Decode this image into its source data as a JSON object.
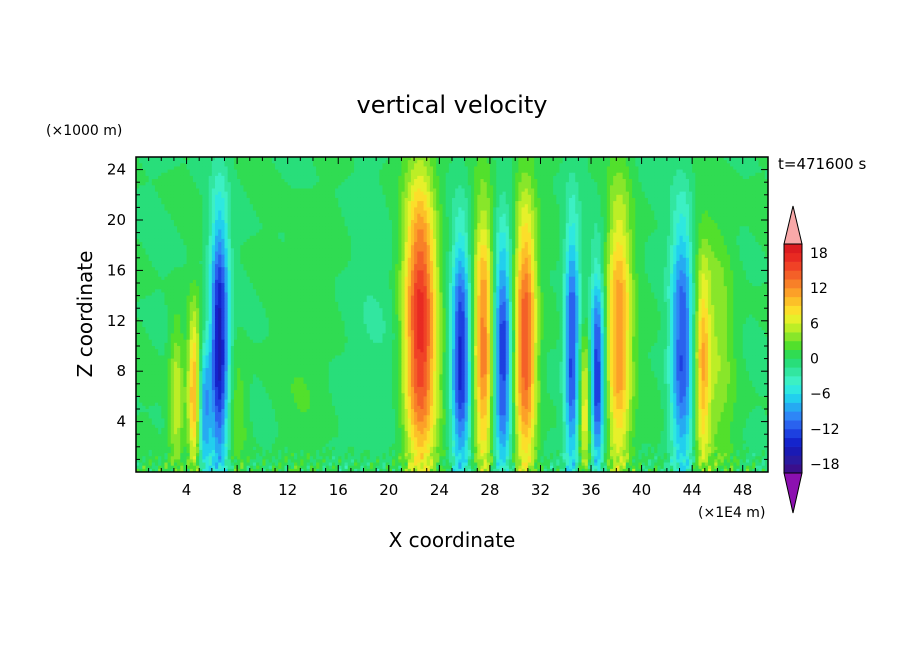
{
  "chart_data": {
    "type": "heatmap",
    "title": "vertical velocity",
    "xlabel": "X coordinate",
    "ylabel": "Z coordinate",
    "x_unit": "(×1E4 m)",
    "y_unit": "(×1000 m)",
    "time_label": "t=471600 s",
    "xlim": [
      0,
      50
    ],
    "ylim": [
      0,
      25
    ],
    "x_ticks": [
      4,
      8,
      12,
      16,
      20,
      24,
      28,
      32,
      36,
      40,
      44,
      48
    ],
    "y_ticks": [
      4,
      8,
      12,
      16,
      20,
      24
    ],
    "colorbar": {
      "levels": [
        -21,
        -19.5,
        -18,
        -16.5,
        -15,
        -13.5,
        -12,
        -10.5,
        -9,
        -7.5,
        -6,
        -4.5,
        -3,
        -1.5,
        0,
        1.5,
        3,
        4.5,
        6,
        7.5,
        9,
        10.5,
        12,
        13.5,
        15,
        16.5,
        18,
        19.5,
        21
      ],
      "tick_values": [
        -18,
        -12,
        -6,
        0,
        6,
        12,
        18
      ],
      "tick_labels": [
        "−18",
        "−12",
        "−6",
        "0",
        "6",
        "12",
        "18"
      ],
      "colors": [
        "#3a0f8c",
        "#2a1aa0",
        "#1a1ab4",
        "#1424cc",
        "#1d40e0",
        "#2a62ee",
        "#2e86f6",
        "#26aaf2",
        "#22cfee",
        "#2ee8e0",
        "#3cf0c4",
        "#32e6a0",
        "#28de7a",
        "#30dc52",
        "#52e02c",
        "#88e62a",
        "#bcee26",
        "#e6f02a",
        "#fcde2a",
        "#fcc028",
        "#fca028",
        "#f88028",
        "#f46028",
        "#f04226",
        "#e82a22",
        "#dc1c20"
      ],
      "under_color": "#8c10b0",
      "over_color": "#f8a8a8"
    },
    "field_features": [
      {
        "x": 3.2,
        "z_top": 12,
        "w": 0.6,
        "amp": 6
      },
      {
        "x": 4.6,
        "z_top": 13,
        "w": 0.5,
        "amp": 11
      },
      {
        "x": 5.4,
        "z_top": 10,
        "w": 0.5,
        "amp": -9
      },
      {
        "x": 6.6,
        "z_top": 21,
        "w": 0.75,
        "amp": -16
      },
      {
        "x": 8.0,
        "z_top": 10,
        "w": 0.8,
        "amp": 3
      },
      {
        "x": 13.5,
        "z_top": 20,
        "w": 1.8,
        "amp": 1.5
      },
      {
        "x": 18.5,
        "z_top": 20,
        "w": 2.0,
        "amp": -1.5
      },
      {
        "x": 22.5,
        "z_top": 24,
        "w": 1.3,
        "amp": 17
      },
      {
        "x": 25.7,
        "z_top": 19,
        "w": 0.75,
        "amp": -14
      },
      {
        "x": 27.5,
        "z_top": 21,
        "w": 0.8,
        "amp": 13
      },
      {
        "x": 29.0,
        "z_top": 19,
        "w": 0.75,
        "amp": -14
      },
      {
        "x": 30.8,
        "z_top": 22,
        "w": 0.9,
        "amp": 15
      },
      {
        "x": 34.5,
        "z_top": 20,
        "w": 0.6,
        "amp": -13
      },
      {
        "x": 35.5,
        "z_top": 11,
        "w": 0.5,
        "amp": 8
      },
      {
        "x": 36.5,
        "z_top": 16,
        "w": 0.55,
        "amp": -14
      },
      {
        "x": 38.2,
        "z_top": 22,
        "w": 1.0,
        "amp": 12
      },
      {
        "x": 43.2,
        "z_top": 21,
        "w": 0.9,
        "amp": -12
      },
      {
        "x": 44.8,
        "z_top": 17,
        "w": 0.6,
        "amp": 9
      },
      {
        "x": 46.0,
        "z_top": 21,
        "w": 1.4,
        "amp": 4
      }
    ]
  }
}
